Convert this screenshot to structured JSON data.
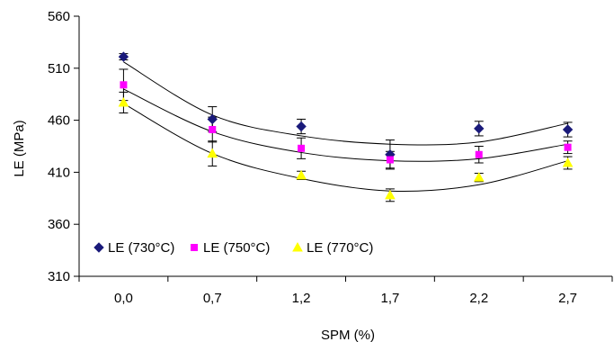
{
  "chart_data": {
    "type": "scatter",
    "title": "",
    "xlabel": "SPM (%)",
    "ylabel": "LE (MPa)",
    "categories": [
      "0,0",
      "0,7",
      "1,2",
      "1,7",
      "2,2",
      "2,7"
    ],
    "x_positions": [
      0.0,
      0.7,
      1.2,
      1.7,
      2.2,
      2.7
    ],
    "ylim": [
      310,
      560
    ],
    "yticks": [
      "310",
      "360",
      "410",
      "460",
      "510",
      "560"
    ],
    "ytick_values": [
      310,
      360,
      410,
      460,
      510,
      560
    ],
    "grid": false,
    "legend_position": "bottom-left",
    "trendline": "polynomial",
    "series": [
      {
        "name": "LE (730°C)",
        "marker": "diamond",
        "color": "#1a1a7a",
        "values": [
          521,
          461,
          454,
          427,
          452,
          451
        ],
        "error": [
          3,
          12,
          7,
          14,
          7,
          7
        ],
        "trend": [
          516,
          465,
          445,
          437,
          439,
          457
        ]
      },
      {
        "name": "LE (750°C)",
        "marker": "square",
        "color": "#ff00ff",
        "values": [
          494,
          451,
          433,
          422,
          427,
          434
        ],
        "error": [
          15,
          12,
          10,
          8,
          8,
          6
        ],
        "trend": [
          490,
          449,
          429,
          421,
          423,
          437
        ]
      },
      {
        "name": "LE (770°C)",
        "marker": "triangle",
        "color": "#ffff00",
        "values": [
          477,
          428,
          407,
          388,
          405,
          419
        ],
        "error": [
          10,
          12,
          4,
          6,
          4,
          6
        ],
        "trend": [
          476,
          428,
          404,
          392,
          398,
          421
        ]
      }
    ]
  }
}
